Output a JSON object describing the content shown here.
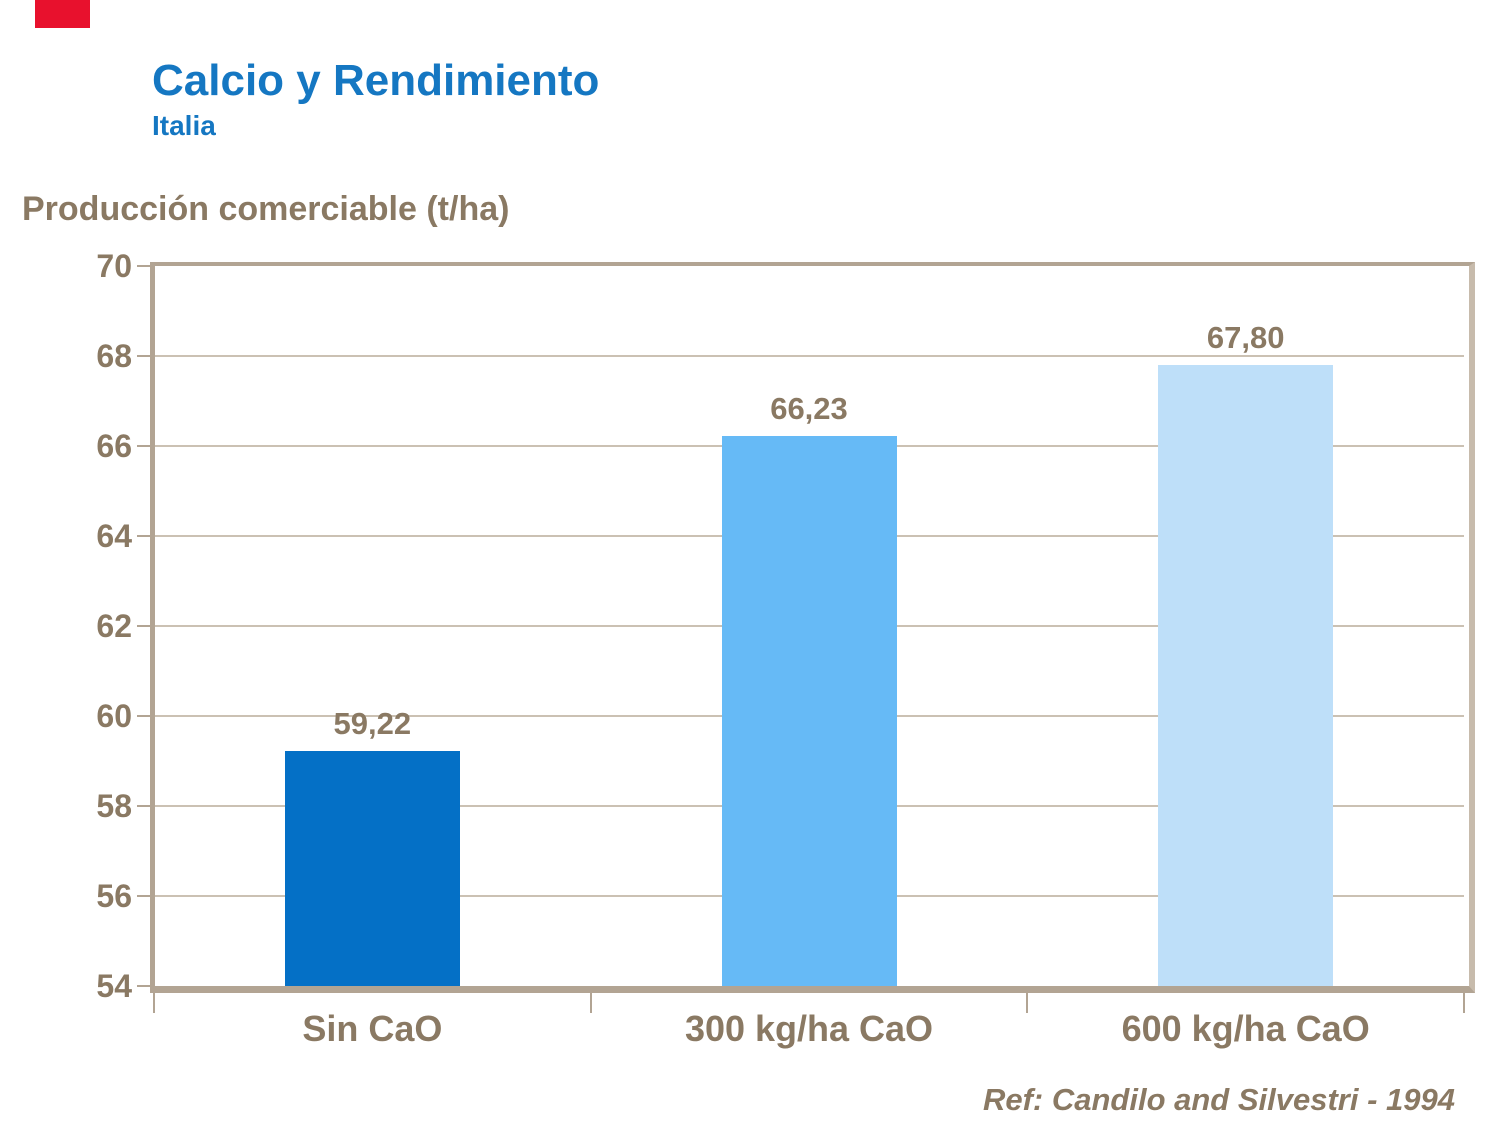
{
  "slide": {
    "title": "Calcio y Rendimiento",
    "subtitle": "Italia",
    "reference": "Ref: Candilo and Silvestri - 1994",
    "colors": {
      "title_blue": "#1577C2",
      "text_brown": "#8A7963",
      "gridline": "#CBC1B3",
      "frame": "#B2A493",
      "frame_light": "#C7BBAC",
      "accent_red": "#E8112D"
    }
  },
  "chart_data": {
    "type": "bar",
    "title": "Calcio y Rendimiento",
    "subtitle": "Italia",
    "ylabel": "Producción comerciable (t/ha)",
    "categories": [
      "Sin CaO",
      "300 kg/ha CaO",
      "600 kg/ha CaO"
    ],
    "values": [
      59.22,
      66.23,
      67.8
    ],
    "value_labels": [
      "59,22",
      "66,23",
      "67,80"
    ],
    "bar_colors": [
      "#0470C6",
      "#66BAF6",
      "#BEDFF9"
    ],
    "ylim": [
      54,
      70
    ],
    "yticks": [
      54,
      56,
      58,
      60,
      62,
      64,
      66,
      68,
      70
    ],
    "grid": true,
    "legend_position": "none",
    "annotation": "Ref: Candilo and Silvestri - 1994"
  }
}
